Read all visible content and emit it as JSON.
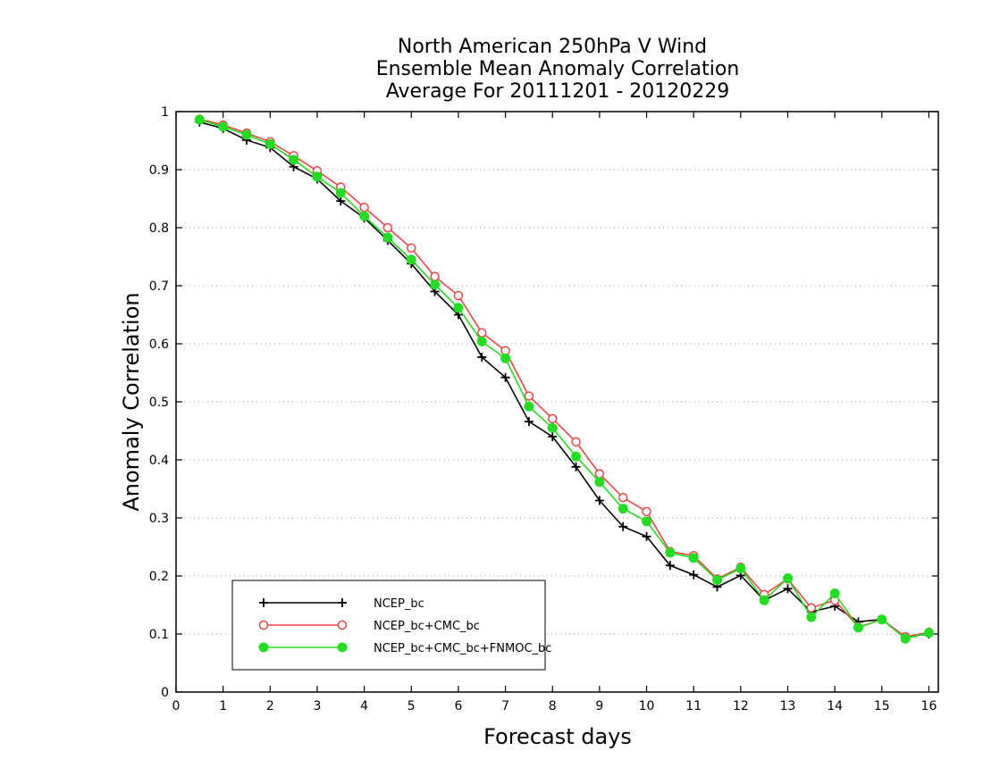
{
  "chart_data": {
    "type": "line",
    "title_lines": [
      "North American 250hPa V Wind",
      "Ensemble Mean Anomaly Correlation",
      "Average For 20111201 - 20120229"
    ],
    "xlabel": "Forecast days",
    "ylabel": "Anomaly Correlation",
    "xlim": [
      0,
      16.2
    ],
    "ylim": [
      0,
      1
    ],
    "x_ticks": [
      "0",
      "1",
      "2",
      "3",
      "4",
      "5",
      "6",
      "7",
      "8",
      "9",
      "10",
      "11",
      "12",
      "13",
      "14",
      "15",
      "16"
    ],
    "y_ticks": [
      "0",
      "0.1",
      "0.2",
      "0.3",
      "0.4",
      "0.5",
      "0.6",
      "0.7",
      "0.8",
      "0.9",
      "1"
    ],
    "grid": "horizontal dotted",
    "legend_position": "bottom-left",
    "x": [
      0.5,
      1,
      1.5,
      2,
      2.5,
      3,
      3.5,
      4,
      4.5,
      5,
      5.5,
      6,
      6.5,
      7,
      7.5,
      8,
      8.5,
      9,
      9.5,
      10,
      10.5,
      11,
      11.5,
      12,
      12.5,
      13,
      13.5,
      14,
      14.5,
      15,
      15.5,
      16
    ],
    "series": [
      {
        "name": "NCEP_bc",
        "color": "#000000",
        "marker": "plus",
        "values": [
          0.982,
          0.971,
          0.951,
          0.938,
          0.905,
          0.884,
          0.846,
          0.817,
          0.778,
          0.738,
          0.69,
          0.65,
          0.577,
          0.542,
          0.466,
          0.44,
          0.388,
          0.33,
          0.285,
          0.268,
          0.218,
          0.202,
          0.181,
          0.201,
          0.158,
          0.178,
          0.138,
          0.148,
          0.121,
          0.125,
          0.095,
          0.1
        ]
      },
      {
        "name": "NCEP_bc+CMC_bc",
        "color": "#ee4444",
        "marker": "open-circle",
        "values": [
          0.987,
          0.977,
          0.963,
          0.948,
          0.924,
          0.898,
          0.87,
          0.835,
          0.8,
          0.765,
          0.716,
          0.683,
          0.619,
          0.588,
          0.51,
          0.471,
          0.431,
          0.376,
          0.335,
          0.311,
          0.242,
          0.235,
          0.195,
          0.215,
          0.168,
          0.195,
          0.145,
          0.158,
          0.112,
          0.125,
          0.095,
          0.103
        ]
      },
      {
        "name": "NCEP_bc+CMC_bc+FNMOC_bc",
        "color": "#22dd22",
        "marker": "filled-circle",
        "values": [
          0.986,
          0.974,
          0.96,
          0.944,
          0.917,
          0.888,
          0.86,
          0.82,
          0.783,
          0.745,
          0.702,
          0.662,
          0.604,
          0.575,
          0.492,
          0.455,
          0.406,
          0.362,
          0.316,
          0.294,
          0.24,
          0.231,
          0.193,
          0.213,
          0.158,
          0.196,
          0.129,
          0.17,
          0.111,
          0.125,
          0.092,
          0.102
        ]
      }
    ]
  }
}
